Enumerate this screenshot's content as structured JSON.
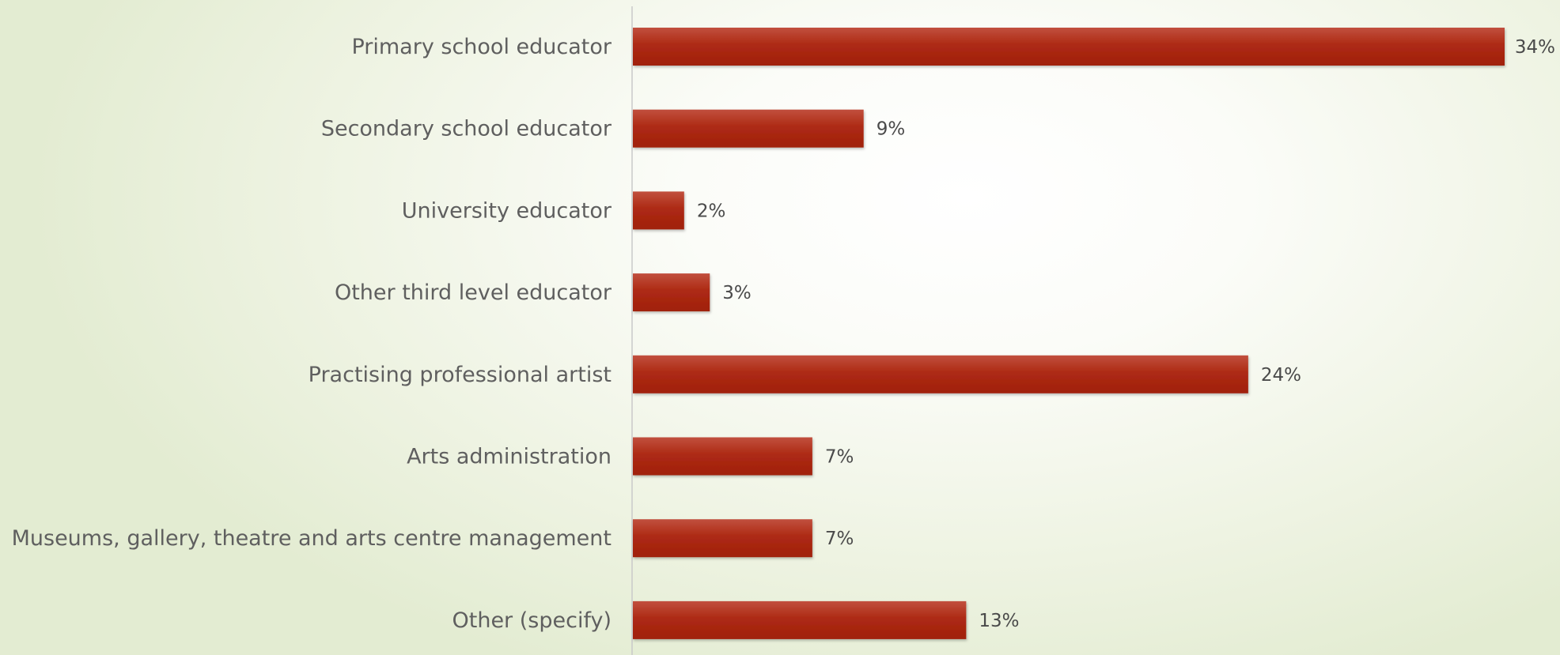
{
  "chart_data": {
    "type": "bar",
    "orientation": "horizontal",
    "categories": [
      "Primary school educator",
      "Secondary school educator",
      "University educator",
      "Other third level educator",
      "Practising professional artist",
      "Arts administration",
      "Museums, gallery, theatre and arts centre management",
      "Other (specify)"
    ],
    "values": [
      34,
      9,
      2,
      3,
      24,
      7,
      7,
      13
    ],
    "value_labels": [
      "34%",
      "9%",
      "2%",
      "3%",
      "24%",
      "7%",
      "7%",
      "13%"
    ],
    "unit": "%",
    "xlim": [
      0,
      34
    ],
    "grid": false,
    "legend": "none",
    "bar_color": "#a82210"
  }
}
